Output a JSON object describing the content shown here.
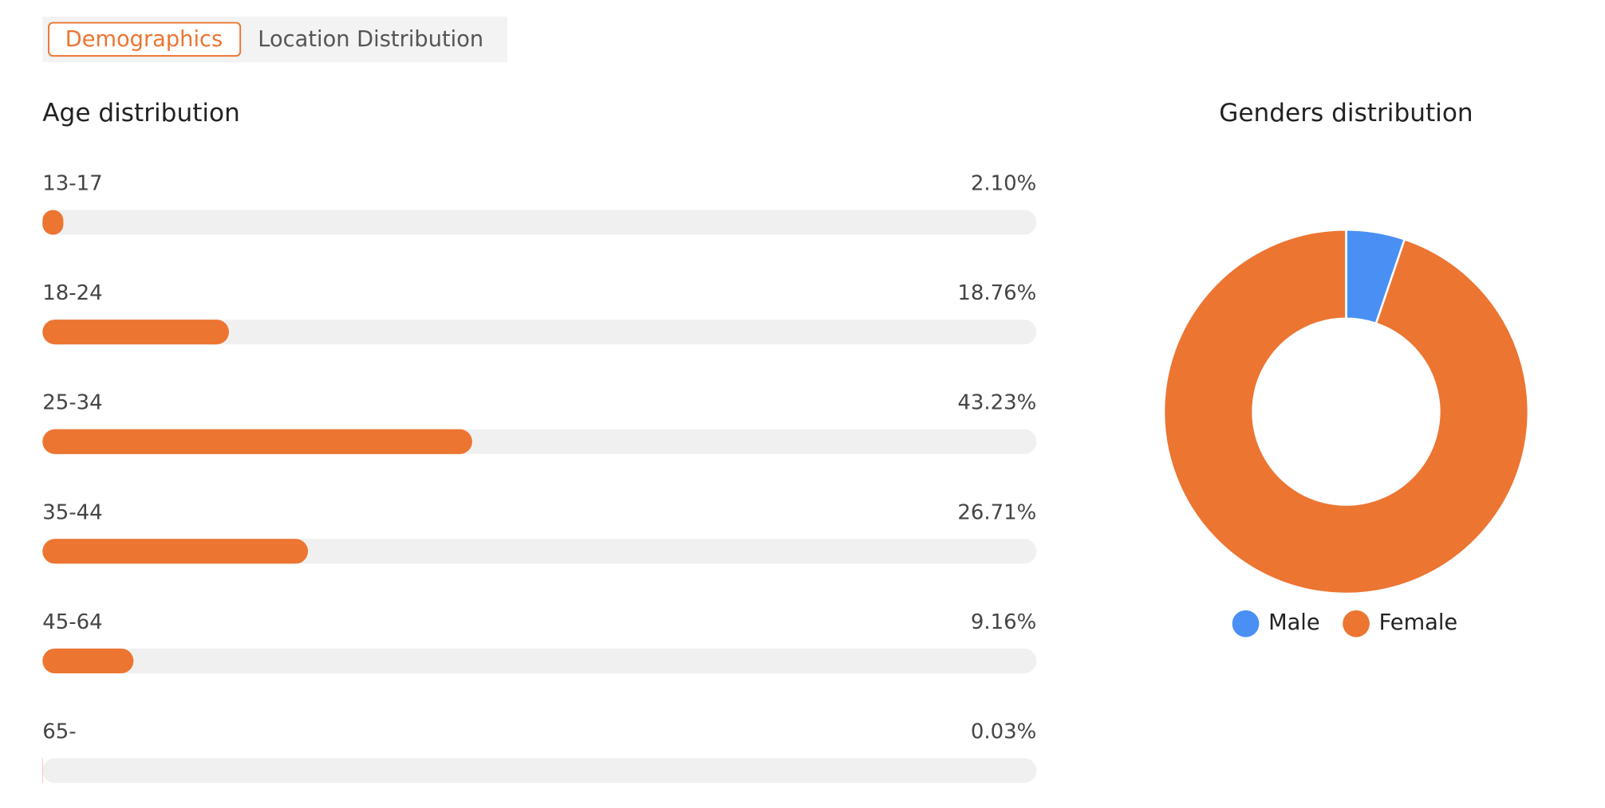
{
  "tabs": [
    "Demographics",
    "Location Distribution"
  ],
  "chart_data": [
    {
      "type": "progress",
      "title": "Age distribution",
      "categories": [
        "13-17",
        "18-24",
        "25-34",
        "35-44",
        "45-64",
        "65-"
      ],
      "values": [
        2.1,
        18.76,
        43.23,
        26.71,
        9.16,
        0.03
      ],
      "value_labels": [
        "2.10%",
        "18.76%",
        "43.23%",
        "26.71%",
        "9.16%",
        "0.03%"
      ],
      "xlim": [
        0,
        100
      ],
      "color": "#ec7532",
      "track_color": "#f0f0f0"
    },
    {
      "type": "donut",
      "title": "Genders distribution",
      "categories": [
        "Male",
        "Female"
      ],
      "values": [
        5.2,
        94.8
      ],
      "colors": [
        "#4a8ff3",
        "#ec7532"
      ],
      "legend": "bottom"
    }
  ]
}
